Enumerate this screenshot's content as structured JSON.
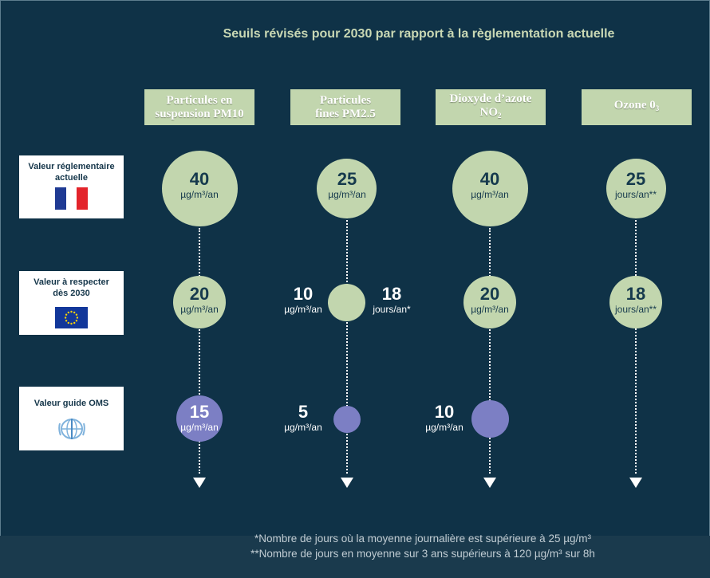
{
  "title": "Seuils révisés pour 2030 par rapport à la règlementation actuelle",
  "columns": [
    {
      "line1": "Particules en",
      "line2": "suspension PM10"
    },
    {
      "line1": "Particules",
      "line2": "fines PM2.5"
    },
    {
      "line1": "Dioxyde d’azote",
      "line2": "NO",
      "sub": "2"
    },
    {
      "line1": "Ozone 0",
      "sub": "3"
    }
  ],
  "rows": [
    {
      "label": "Valeur réglementaire actuelle",
      "icon": "france-flag-icon"
    },
    {
      "label": "Valeur à respecter dès 2030",
      "icon": "eu-flag-icon"
    },
    {
      "label": "Valeur guide OMS",
      "icon": "who-logo-icon"
    }
  ],
  "values": {
    "pm10": {
      "current": {
        "num": "40",
        "unit": "µg/m³/an"
      },
      "2030": {
        "num": "20",
        "unit": "µg/m³/an"
      },
      "oms": {
        "num": "15",
        "unit": "µg/m³/an"
      }
    },
    "pm25": {
      "current": {
        "num": "25",
        "unit": "µg/m³/an"
      },
      "2030_a": {
        "num": "10",
        "unit": "µg/m³/an"
      },
      "2030_b": {
        "num": "18",
        "unit": "jours/an*"
      },
      "oms": {
        "num": "5",
        "unit": "µg/m³/an"
      }
    },
    "no2": {
      "current": {
        "num": "40",
        "unit": "µg/m³/an"
      },
      "2030": {
        "num": "20",
        "unit": "µg/m³/an"
      },
      "oms": {
        "num": "10",
        "unit": "µg/m³/an"
      }
    },
    "o3": {
      "current": {
        "num": "25",
        "unit": "jours/an**"
      },
      "2030": {
        "num": "18",
        "unit": "jours/an**"
      }
    }
  },
  "footnotes": [
    "*Nombre de jours où la moyenne journalière est supérieure à 25 µg/m³",
    "**Nombre de jours en moyenne sur 3 ans supérieurs à 120 µg/m³ sur 8h"
  ],
  "colors": {
    "background": "#0f3247",
    "green": "#c2d6ae",
    "blue": "#7c7fc4",
    "dark_text": "#163a4d"
  }
}
